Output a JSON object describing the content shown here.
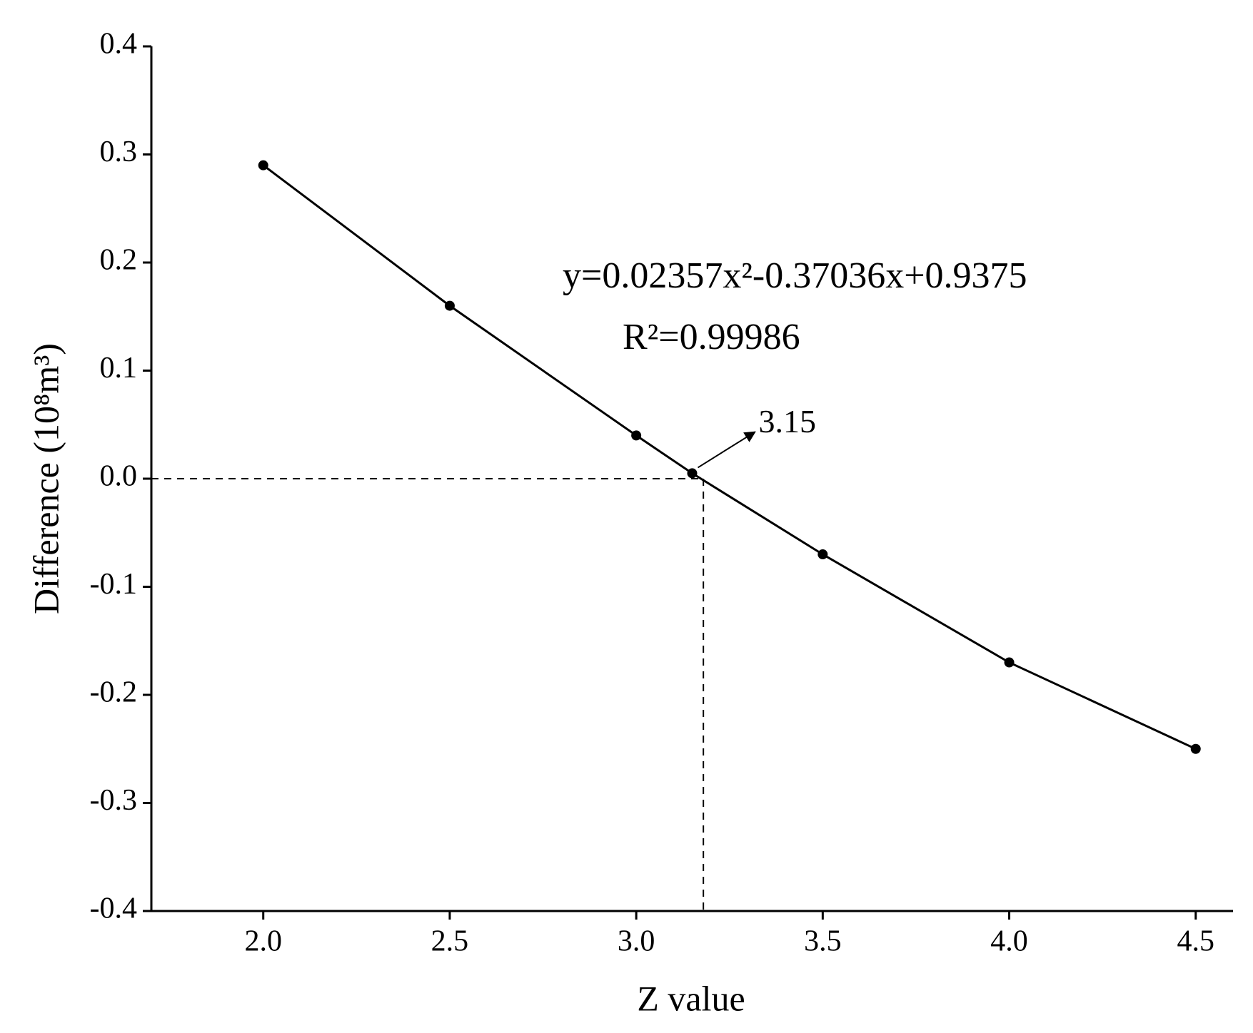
{
  "chart_data": {
    "type": "line",
    "xlabel": "Z value",
    "ylabel": "Difference (10⁸m³)",
    "annotations": [
      "y=0.02357x²-0.37036x+0.9375",
      "R²=0.99986",
      "3.15"
    ],
    "x": [
      2.0,
      2.5,
      3.0,
      3.15,
      3.5,
      4.0,
      4.5
    ],
    "values": [
      0.29,
      0.16,
      0.04,
      0.005,
      -0.07,
      -0.17,
      -0.25
    ],
    "color": "#000000",
    "reference_lines": {
      "x": 3.18,
      "y": 0
    },
    "xlim": [
      1.7,
      4.6
    ],
    "ylim": [
      -0.4,
      0.4
    ],
    "xticks": [
      {
        "value": 2,
        "label": "2.0"
      },
      2.5,
      {
        "value": 3,
        "label": "3.0"
      },
      3.5,
      {
        "value": 4,
        "label": "4.0"
      },
      4.5
    ],
    "yticks": [
      -0.4,
      -0.3,
      -0.2,
      -0.1,
      {
        "value": 0,
        "label": "0.0"
      },
      0.1,
      0.2,
      0.3,
      0.4
    ]
  }
}
